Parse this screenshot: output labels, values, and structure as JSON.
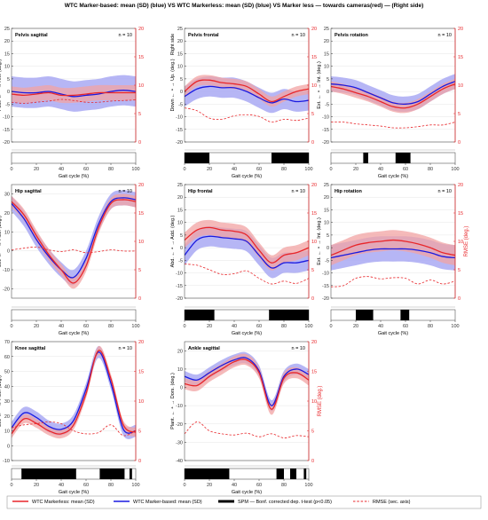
{
  "figure_title": "WTC Marker-based: mean (SD) (blue) VS WTC Markerless: mean (SD) (blue) VS  Marker less — towards cameras(red) — (Right side)",
  "colors": {
    "markerless": "#e8262a",
    "markerless_band": "#f2a3a3",
    "markerbased": "#1a1ae0",
    "markerbased_band": "#a9a9f3",
    "rmse": "#e8262a",
    "spm": "#000000"
  },
  "legend": {
    "markerless": "WTC Markerless: mean (SD)",
    "markerbased": "WTC Marker-based: mean (SD)",
    "spm": "SPM — Bonf. corrected dep. t-test (p<0.05)",
    "rmse": "RMSE (sec. axis)"
  },
  "chart_data": [
    {
      "type": "line",
      "title": "Pelvis sagittal",
      "n_label": "n = 10",
      "ylabel": "Post. ← ∘ → Ant. (deg.)",
      "y2label": "",
      "xlabel": "Gait cycle (%)",
      "ylim": [
        -20,
        25
      ],
      "yticks": [
        -20,
        -15,
        -10,
        -5,
        0,
        5,
        10,
        15,
        20,
        25
      ],
      "y2lim": [
        0,
        20
      ],
      "y2ticks": [
        0,
        5,
        10,
        15,
        20
      ],
      "xlim": [
        0,
        100
      ],
      "xticks": [
        0,
        20,
        40,
        60,
        80,
        100
      ],
      "x": [
        0,
        10,
        20,
        30,
        40,
        50,
        60,
        70,
        80,
        90,
        100
      ],
      "series": [
        {
          "name": "WTC Markerless: mean (SD)",
          "values": [
            -1,
            -1.5,
            -1,
            -0.5,
            -1.5,
            -1.5,
            -1,
            -0.5,
            -0.5,
            -0.5,
            -0.5
          ],
          "sd": [
            3,
            3,
            3,
            3,
            3,
            3,
            3,
            3,
            3,
            3,
            3
          ]
        },
        {
          "name": "WTC Marker-based: mean (SD)",
          "values": [
            0,
            -0.5,
            -0.5,
            0,
            -1,
            -2,
            -1.5,
            -1,
            0,
            0.5,
            0
          ],
          "sd": [
            6,
            6,
            6,
            6,
            6,
            6,
            6,
            6,
            6,
            6,
            6
          ]
        },
        {
          "name": "RMSE (sec. axis)",
          "axis": "secondary",
          "values": [
            7,
            6.8,
            7,
            7.2,
            7.5,
            7.3,
            7,
            7,
            7.2,
            7.3,
            7.4
          ]
        }
      ],
      "spm_significant": []
    },
    {
      "type": "line",
      "title": "Pelvis frontal",
      "n_label": "n = 10",
      "ylabel": "Down ← ∘ → Up. (deg.)",
      "ylabel_top": "Right side",
      "y2label": "",
      "xlabel": "Gait cycle (%)",
      "ylim": [
        -20,
        25
      ],
      "yticks": [
        -20,
        -15,
        -10,
        -5,
        0,
        5,
        10,
        15,
        20,
        25
      ],
      "y2lim": [
        0,
        20
      ],
      "y2ticks": [
        0,
        5,
        10,
        15,
        20
      ],
      "xlim": [
        0,
        100
      ],
      "xticks": [
        0,
        20,
        40,
        60,
        80,
        100
      ],
      "x": [
        0,
        10,
        20,
        30,
        40,
        50,
        60,
        70,
        80,
        90,
        100
      ],
      "series": [
        {
          "name": "WTC Markerless: mean (SD)",
          "values": [
            0,
            4,
            4.5,
            3.5,
            3,
            2,
            -1,
            -4,
            -2,
            0,
            1
          ],
          "sd": [
            2,
            2,
            2,
            2,
            2,
            2,
            2,
            2,
            2,
            2,
            2
          ]
        },
        {
          "name": "WTC Marker-based: mean (SD)",
          "values": [
            -2,
            1,
            2,
            1.5,
            1.5,
            0,
            -2.5,
            -4.5,
            -3,
            -4,
            -3.5
          ],
          "sd": [
            4,
            4,
            4,
            4,
            4,
            4,
            4,
            4,
            4,
            4,
            4
          ]
        },
        {
          "name": "RMSE (sec. axis)",
          "axis": "secondary",
          "values": [
            6,
            5.5,
            4.2,
            4,
            4.6,
            4.8,
            4.5,
            3.5,
            4,
            3.8,
            4.2
          ]
        }
      ],
      "spm_significant": [
        [
          0,
          20
        ],
        [
          70,
          100
        ]
      ]
    },
    {
      "type": "line",
      "title": "Pelvis rotation",
      "n_label": "n = 10",
      "ylabel": "Ext. ← ∘ → Int. (deg.)",
      "y2label": "",
      "xlabel": "Gait cycle (%)",
      "ylim": [
        -20,
        25
      ],
      "yticks": [
        -20,
        -15,
        -10,
        -5,
        0,
        5,
        10,
        15,
        20,
        25
      ],
      "y2lim": [
        0,
        20
      ],
      "y2ticks": [
        0,
        5,
        10,
        15,
        20
      ],
      "xlim": [
        0,
        100
      ],
      "xticks": [
        0,
        20,
        40,
        60,
        80,
        100
      ],
      "x": [
        0,
        10,
        20,
        30,
        40,
        50,
        60,
        70,
        80,
        90,
        100
      ],
      "series": [
        {
          "name": "WTC Markerless: mean (SD)",
          "values": [
            2,
            1,
            -0.5,
            -2,
            -4,
            -6,
            -6.5,
            -5,
            -2,
            1,
            3
          ],
          "sd": [
            2,
            2,
            2,
            2,
            2,
            2,
            2,
            2,
            2,
            2,
            2
          ]
        },
        {
          "name": "WTC Marker-based: mean (SD)",
          "values": [
            3,
            2.5,
            1.5,
            -0.5,
            -2.5,
            -4.5,
            -5,
            -4,
            -1,
            2,
            4
          ],
          "sd": [
            3,
            3,
            3,
            3,
            3,
            3,
            3,
            3,
            3,
            3,
            3
          ]
        },
        {
          "name": "RMSE (sec. axis)",
          "axis": "secondary",
          "values": [
            3.5,
            3.5,
            3.2,
            3,
            2.8,
            2.5,
            2.5,
            2.7,
            3,
            3,
            3.5
          ]
        }
      ],
      "spm_significant": [
        [
          26,
          30
        ],
        [
          52,
          64
        ]
      ]
    },
    {
      "type": "line",
      "title": "Hip sagittal",
      "n_label": "n = 10",
      "ylabel": "Ext. ← ∘ → Flex. (deg.)",
      "y2label": "",
      "xlabel": "Gait cycle (%)",
      "ylim": [
        -25,
        35
      ],
      "yticks": [
        -20,
        -10,
        0,
        10,
        20,
        30
      ],
      "y2lim": [
        0,
        20
      ],
      "y2ticks": [
        0,
        5,
        10,
        15,
        20
      ],
      "xlim": [
        0,
        100
      ],
      "xticks": [
        0,
        20,
        40,
        60,
        80,
        100
      ],
      "x": [
        0,
        10,
        20,
        30,
        40,
        50,
        60,
        70,
        80,
        90,
        100
      ],
      "series": [
        {
          "name": "WTC Markerless: mean (SD)",
          "values": [
            26,
            19,
            8,
            -2,
            -10,
            -17,
            -8,
            12,
            25,
            27,
            26
          ],
          "sd": [
            3,
            3,
            3,
            3,
            3,
            3,
            3,
            3,
            3,
            3,
            3
          ]
        },
        {
          "name": "WTC Marker-based: mean (SD)",
          "values": [
            25,
            17,
            6,
            -3,
            -10,
            -14,
            -4,
            14,
            26,
            28,
            27
          ],
          "sd": [
            4,
            4,
            4,
            4,
            4,
            4,
            4,
            4,
            4,
            4,
            4
          ]
        },
        {
          "name": "RMSE (sec. axis)",
          "axis": "secondary",
          "values": [
            8.5,
            8.8,
            9,
            8.5,
            8.2,
            8.5,
            8,
            8.2,
            8.5,
            8.3,
            8.3
          ]
        }
      ],
      "spm_significant": []
    },
    {
      "type": "line",
      "title": "Hip frontal",
      "n_label": "n = 10",
      "ylabel": "Abd. ← ∘ → Add. (deg.)",
      "y2label": "",
      "xlabel": "Gait cycle (%)",
      "ylim": [
        -20,
        25
      ],
      "yticks": [
        -20,
        -15,
        -10,
        -5,
        0,
        5,
        10,
        15,
        20,
        25
      ],
      "y2lim": [
        0,
        20
      ],
      "y2ticks": [
        0,
        5,
        10,
        15,
        20
      ],
      "xlim": [
        0,
        100
      ],
      "xticks": [
        0,
        20,
        40,
        60,
        80,
        100
      ],
      "x": [
        0,
        10,
        20,
        30,
        40,
        50,
        60,
        70,
        80,
        90,
        100
      ],
      "series": [
        {
          "name": "WTC Markerless: mean (SD)",
          "values": [
            3,
            7,
            8,
            7,
            6.5,
            5,
            -1,
            -6,
            -3,
            -2,
            0
          ],
          "sd": [
            3,
            3,
            3,
            3,
            3,
            3,
            3,
            3,
            3,
            3,
            3
          ]
        },
        {
          "name": "WTC Marker-based: mean (SD)",
          "values": [
            -3,
            3,
            4.5,
            4,
            3.5,
            2.5,
            -3,
            -8,
            -6,
            -6,
            -5
          ],
          "sd": [
            4,
            4,
            4,
            4,
            4,
            4,
            4,
            4,
            4,
            4,
            4
          ]
        },
        {
          "name": "RMSE (sec. axis)",
          "axis": "secondary",
          "values": [
            6,
            5.8,
            5,
            4.2,
            4.3,
            4.8,
            3.5,
            2.5,
            3,
            2.6,
            3.5
          ]
        }
      ],
      "spm_significant": [
        [
          0,
          24
        ],
        [
          68,
          100
        ]
      ]
    },
    {
      "type": "line",
      "title": "Hip rotation",
      "n_label": "n = 10",
      "ylabel": "Ext. ← ∘ → Int. (deg.)",
      "y2label": "RMSE (deg.)",
      "xlabel": "Gait cycle (%)",
      "ylim": [
        -20,
        25
      ],
      "yticks": [
        -20,
        -15,
        -10,
        -5,
        0,
        5,
        10,
        15,
        20,
        25
      ],
      "y2lim": [
        0,
        20
      ],
      "y2ticks": [
        0,
        5,
        10,
        15,
        20
      ],
      "xlim": [
        0,
        100
      ],
      "xticks": [
        0,
        20,
        40,
        60,
        80,
        100
      ],
      "x": [
        0,
        10,
        20,
        30,
        40,
        50,
        60,
        70,
        80,
        90,
        100
      ],
      "series": [
        {
          "name": "WTC Markerless: mean (SD)",
          "values": [
            -3,
            -1,
            1,
            2,
            2.5,
            3,
            2.5,
            1.5,
            0,
            -2,
            -3
          ],
          "sd": [
            4,
            4,
            4,
            4,
            4,
            4,
            4,
            4,
            4,
            4,
            4
          ]
        },
        {
          "name": "WTC Marker-based: mean (SD)",
          "values": [
            -4,
            -3,
            -2,
            -1,
            -0.5,
            -0.5,
            -0.5,
            -1,
            -2,
            -3.5,
            -4
          ],
          "sd": [
            5,
            5,
            5,
            5,
            5,
            5,
            5,
            5,
            5,
            5,
            5
          ]
        },
        {
          "name": "RMSE (sec. axis)",
          "axis": "secondary",
          "values": [
            2,
            2.2,
            3.5,
            3.8,
            3.4,
            3.6,
            3.5,
            2.5,
            3.2,
            2.5,
            3
          ]
        }
      ],
      "spm_significant": [
        [
          20,
          34
        ],
        [
          56,
          63
        ]
      ]
    },
    {
      "type": "line",
      "title": "Knee sagittal",
      "n_label": "n = 10",
      "ylabel": "Ext. ← ∘ → Flex. (deg.)",
      "y2label": "",
      "xlabel": "Gait cycle (%)",
      "ylim": [
        -10,
        70
      ],
      "yticks": [
        -10,
        0,
        10,
        20,
        30,
        40,
        50,
        60,
        70
      ],
      "y2lim": [
        0,
        20
      ],
      "y2ticks": [
        0,
        5,
        10,
        15,
        20
      ],
      "xlim": [
        0,
        100
      ],
      "xticks": [
        0,
        20,
        40,
        60,
        80,
        100
      ],
      "x": [
        0,
        10,
        20,
        30,
        40,
        50,
        60,
        70,
        80,
        90,
        100
      ],
      "series": [
        {
          "name": "WTC Markerless: mean (SD)",
          "values": [
            8,
            18,
            15,
            10,
            8,
            14,
            35,
            64,
            45,
            14,
            9
          ],
          "sd": [
            3,
            3,
            3,
            3,
            3,
            3,
            3,
            3,
            3,
            3,
            3
          ]
        },
        {
          "name": "WTC Marker-based: mean (SD)",
          "values": [
            12,
            22,
            19,
            13,
            11,
            17,
            38,
            63,
            42,
            11,
            10
          ],
          "sd": [
            4,
            4,
            4,
            4,
            4,
            4,
            4,
            4,
            4,
            4,
            4
          ]
        },
        {
          "name": "RMSE (sec. axis)",
          "axis": "secondary",
          "values": [
            5.5,
            6,
            6.2,
            6.5,
            6.2,
            5,
            4.5,
            4.7,
            6,
            4.2,
            5
          ]
        }
      ],
      "spm_significant": [
        [
          8,
          52
        ],
        [
          71,
          91
        ],
        [
          95,
          97
        ]
      ]
    },
    {
      "type": "line",
      "title": "Ankle sagittal",
      "n_label": "n = 10",
      "ylabel": "Plant. ← ∘ → Dors. (deg.)",
      "y2label": "RMSE (deg.)",
      "xlabel": "Gait cycle (%)",
      "ylim": [
        -40,
        25
      ],
      "yticks": [
        -40,
        -30,
        -20,
        -10,
        0,
        10,
        20
      ],
      "y2lim": [
        0,
        20
      ],
      "y2ticks": [
        0,
        5,
        10,
        15,
        20
      ],
      "xlim": [
        0,
        100
      ],
      "xticks": [
        0,
        20,
        40,
        60,
        80,
        100
      ],
      "x": [
        0,
        10,
        20,
        30,
        40,
        50,
        60,
        70,
        80,
        90,
        100
      ],
      "series": [
        {
          "name": "WTC Markerless: mean (SD)",
          "values": [
            2,
            1,
            6,
            10,
            14,
            15,
            8,
            -12,
            5,
            8,
            4
          ],
          "sd": [
            3,
            3,
            3,
            3,
            3,
            3,
            3,
            3,
            3,
            3,
            3
          ]
        },
        {
          "name": "WTC Marker-based: mean (SD)",
          "values": [
            6,
            4,
            8,
            12,
            15,
            16,
            9,
            -10,
            6,
            10,
            7
          ],
          "sd": [
            3,
            3,
            3,
            3,
            3,
            3,
            3,
            3,
            3,
            3,
            3
          ]
        },
        {
          "name": "RMSE (sec. axis)",
          "axis": "secondary",
          "values": [
            4.5,
            6.5,
            5,
            4.5,
            4.3,
            4.6,
            4,
            4.5,
            3.8,
            4.2,
            4
          ]
        }
      ],
      "spm_significant": [
        [
          0,
          36
        ],
        [
          74,
          80
        ],
        [
          85,
          90
        ],
        [
          96,
          98
        ]
      ]
    }
  ]
}
